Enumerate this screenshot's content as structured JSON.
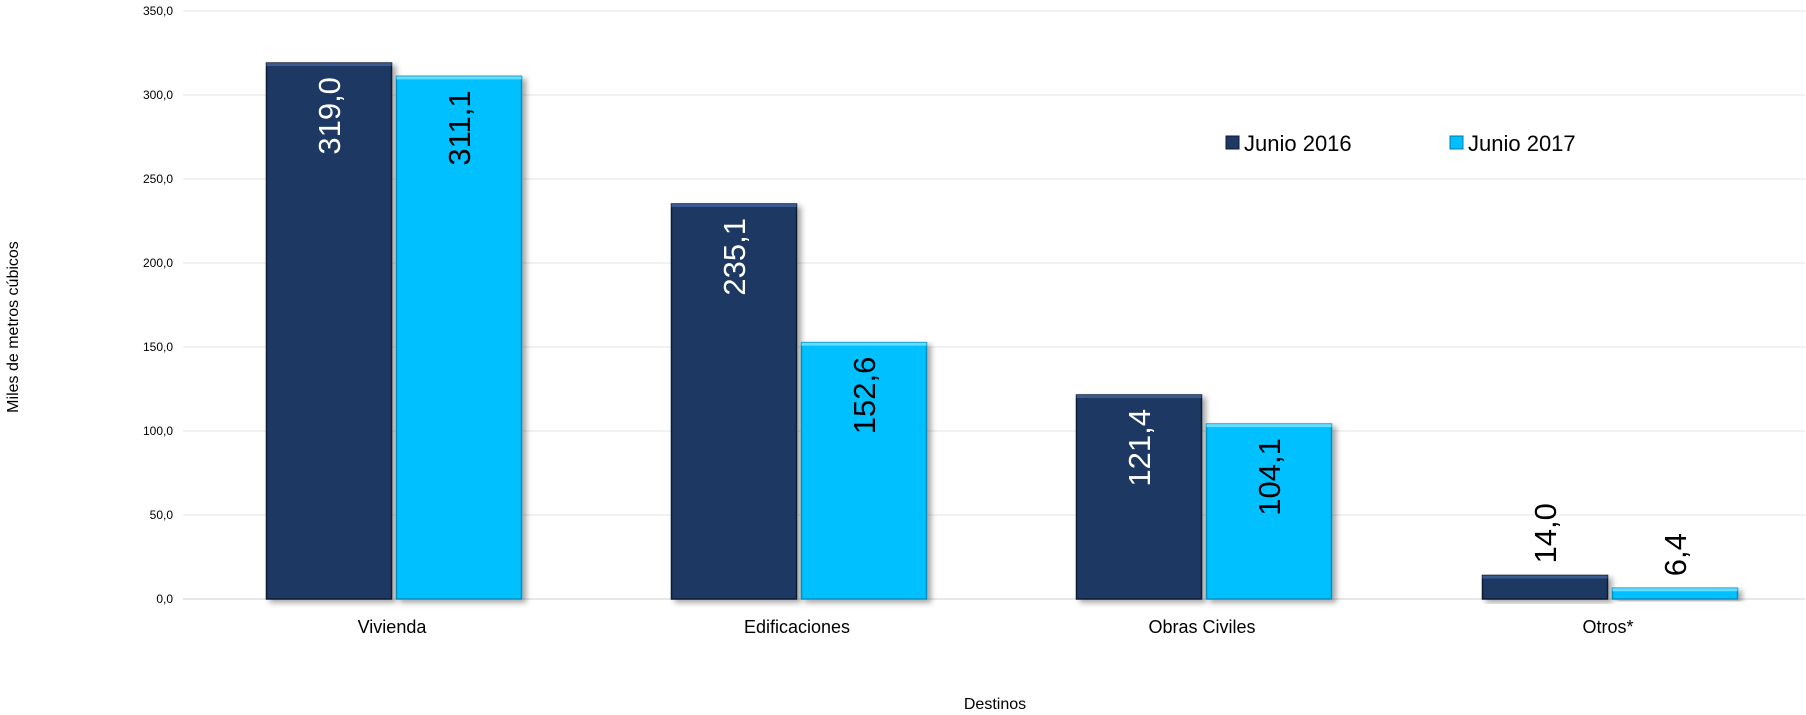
{
  "chart_data": {
    "type": "bar",
    "title": "",
    "xlabel": "Destinos",
    "ylabel": "Miles de metros cúbicos",
    "categories": [
      "Vivienda",
      "Edificaciones",
      "Obras Civiles",
      "Otros*"
    ],
    "series": [
      {
        "name": "Junio 2016",
        "values": [
          319.0,
          235.1,
          121.4,
          14.0
        ],
        "labels": [
          "319,0",
          "235,1",
          "121,4",
          "14,0"
        ],
        "color": "#1f3864"
      },
      {
        "name": "Junio 2017",
        "values": [
          311.1,
          152.6,
          104.1,
          6.4
        ],
        "labels": [
          "311,1",
          "152,6",
          "104,1",
          "6,4"
        ],
        "color": "#00c0ff"
      }
    ],
    "ylim": [
      0,
      350
    ],
    "yticks": [
      "0,0",
      "50,0",
      "100,0",
      "150,0",
      "200,0",
      "250,0",
      "300,0",
      "350,0"
    ],
    "grid": true,
    "legend_position": "top-right"
  }
}
